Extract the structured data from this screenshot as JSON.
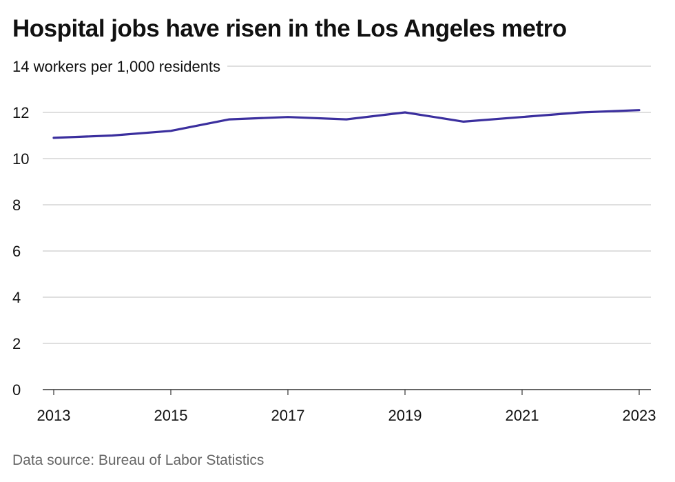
{
  "title": "Hospital jobs have risen in the Los Angeles metro",
  "source": "Data source: Bureau of Labor Statistics",
  "chart_data": {
    "type": "line",
    "title": "Hospital jobs have risen in the Los Angeles metro",
    "ylabel": "workers per 1,000 residents",
    "top_tick_suffix": " workers per 1,000 residents",
    "x": [
      2013,
      2014,
      2015,
      2016,
      2017,
      2018,
      2019,
      2020,
      2021,
      2022,
      2023
    ],
    "x_ticks": [
      "2013",
      "2015",
      "2017",
      "2019",
      "2021",
      "2023"
    ],
    "y_ticks": [
      0,
      2,
      4,
      6,
      8,
      10,
      12,
      14
    ],
    "ylim": [
      0,
      14
    ],
    "grid": true,
    "series": [
      {
        "values": [
          10.9,
          11.0,
          11.2,
          11.7,
          11.8,
          11.7,
          12.0,
          11.6,
          11.8,
          12.0,
          12.1
        ],
        "color": "#3b2f9e"
      }
    ],
    "colors": {
      "line": "#3b2f9e",
      "grid": "#bfbfbf",
      "axis": "#333333"
    }
  }
}
